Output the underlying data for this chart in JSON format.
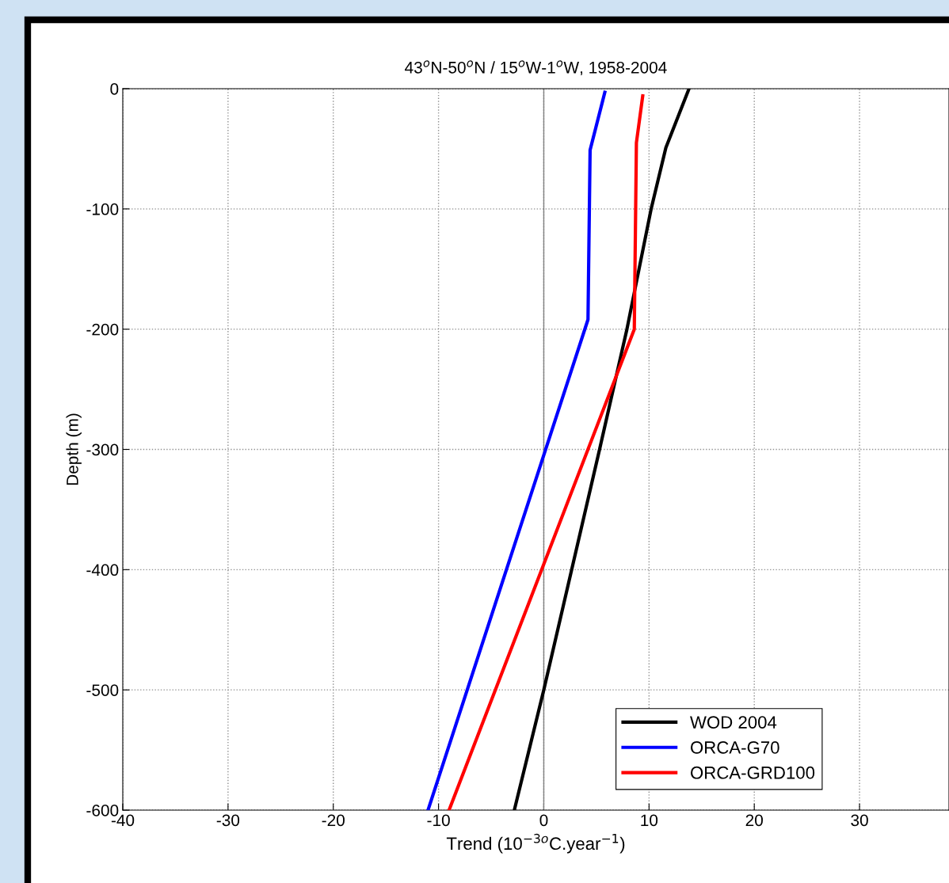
{
  "chart_data": {
    "type": "line",
    "title": "43$^{o}$N-50$^{o}$N / 15$^{o}$W-1$^{o}$W, 1958-2004",
    "xlabel": "Trend (10$^{−3o}$C.year$^{−1}$)",
    "ylabel": "Depth (m)",
    "series": [
      {
        "name": "WOD 2004",
        "color": "#000000",
        "x": [
          13.8,
          11.6,
          10.2,
          7.9,
          5.3,
          0,
          -2.8
        ],
        "values": [
          0,
          -49,
          -100,
          -200,
          -300,
          -500,
          -600
        ]
      },
      {
        "name": "ORCA-G70",
        "color": "#0000ff",
        "x": [
          5.8,
          4.4,
          4.2,
          -11.0
        ],
        "values": [
          -3,
          -51,
          -192,
          -600
        ]
      },
      {
        "name": "ORCA-GRD100",
        "color": "#ff0000",
        "x": [
          9.4,
          8.8,
          8.6,
          -9.0
        ],
        "values": [
          -6,
          -45,
          -200,
          -600
        ]
      }
    ],
    "ref_lines": [
      {
        "axis": "x",
        "value": 0,
        "label": null,
        "color": "#808080",
        "line_style": "solid"
      }
    ],
    "xlim": [
      -40,
      38.5
    ],
    "xticks": [
      -40,
      -30,
      -20,
      -10,
      0,
      10,
      20,
      30
    ],
    "ylim": [
      -600,
      0
    ],
    "yticks": [
      -600,
      -500,
      -400,
      -300,
      -200,
      -100,
      0
    ],
    "grid": true,
    "legend": "bottom right",
    "marker": "none",
    "line_style": "solid"
  }
}
